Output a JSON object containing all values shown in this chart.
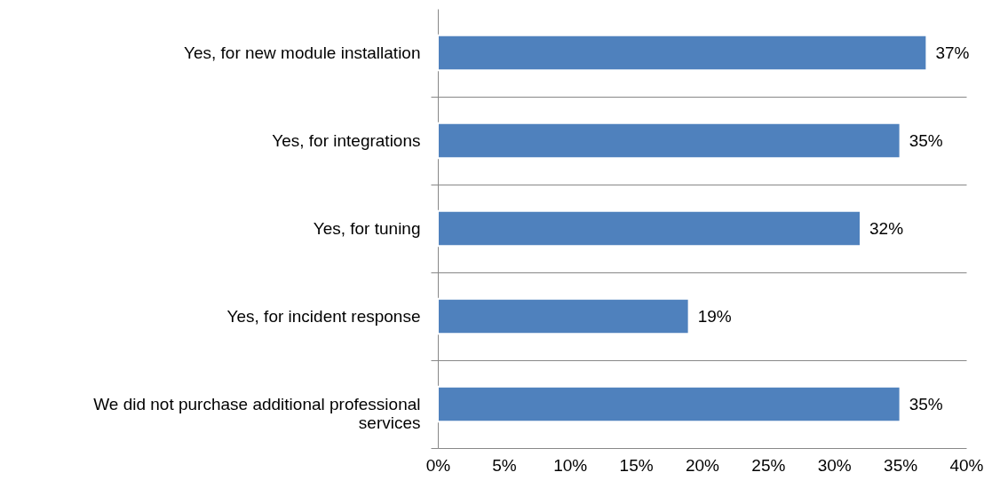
{
  "chart_data": {
    "type": "bar",
    "orientation": "horizontal",
    "categories": [
      "Yes, for new module installation",
      "Yes, for integrations",
      "Yes, for tuning",
      "Yes, for incident response",
      "We did not purchase additional professional services"
    ],
    "values": [
      37,
      35,
      32,
      19,
      35
    ],
    "value_labels": [
      "37%",
      "35%",
      "32%",
      "19%",
      "35%"
    ],
    "color": "#4f81bd",
    "xlim": [
      0,
      40
    ],
    "xticks": [
      {
        "value": 0,
        "label": "0%"
      },
      {
        "value": 5,
        "label": "5%"
      },
      {
        "value": 10,
        "label": "10%"
      },
      {
        "value": 15,
        "label": "15%"
      },
      {
        "value": 20,
        "label": "20%"
      },
      {
        "value": 25,
        "label": "25%"
      },
      {
        "value": 30,
        "label": "30%"
      },
      {
        "value": 35,
        "label": "35%"
      },
      {
        "value": 40,
        "label": "40%"
      }
    ],
    "grid": "y"
  }
}
